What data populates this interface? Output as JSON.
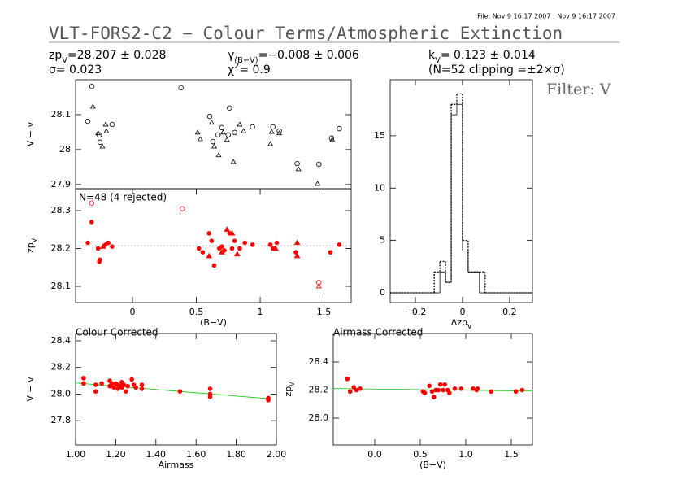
{
  "header": {
    "file": "File: Nov  9 16:17 2007 : Nov  9 16:17 2007",
    "title": "VLT-FORS2-C2 − Colour Terms/Atmospheric Extinction",
    "filter": "Filter: V",
    "stats": [
      [
        {
          "text": "zp"
        },
        {
          "text": "V",
          "pos": "sub"
        },
        {
          "text": "=28.207 ± 0.028"
        }
      ],
      [
        {
          "text": "γ"
        },
        {
          "text": "(B−V)",
          "pos": "sub"
        },
        {
          "text": "=−0.008 ± 0.006"
        }
      ],
      [
        {
          "text": "k"
        },
        {
          "text": "V",
          "pos": "sub"
        },
        {
          "text": "= 0.123 ± 0.014"
        }
      ],
      [
        {
          "text": "σ= 0.023"
        }
      ],
      [
        {
          "text": "χ"
        },
        {
          "text": "2",
          "pos": "sup"
        },
        {
          "text": "=  0.9"
        }
      ],
      [
        {
          "text": "(N=52 clipping =±2×σ)"
        }
      ]
    ]
  },
  "chart_data": [
    {
      "type": "scatter",
      "ylabel": "V − v",
      "xlim": [
        -0.446,
        1.713
      ],
      "ylim": [
        27.888,
        28.2
      ],
      "yticks": [
        27.9,
        28.0,
        28.1
      ],
      "series": [
        {
          "marker": "circle",
          "color": "#000000",
          "x": [
            -0.318,
            -0.35,
            -0.26,
            -0.255,
            -0.16,
            0.38,
            0.605,
            0.63,
            0.67,
            0.7,
            0.75,
            0.76,
            0.8,
            0.94,
            1.1,
            1.15,
            1.29,
            1.46,
            1.56,
            1.62
          ],
          "values": [
            28.181,
            28.081,
            28.042,
            28.021,
            28.072,
            28.177,
            28.095,
            28.023,
            28.042,
            28.063,
            28.042,
            28.119,
            28.049,
            28.065,
            28.065,
            28.053,
            27.96,
            27.958,
            28.033,
            28.06
          ]
        },
        {
          "marker": "triangle",
          "color": "#000000",
          "x": [
            -0.31,
            -0.27,
            -0.236,
            -0.21,
            -0.205,
            0.51,
            0.53,
            0.62,
            0.64,
            0.675,
            0.71,
            0.74,
            0.79,
            0.84,
            0.87,
            1.09,
            1.08,
            1.15,
            1.3,
            1.45,
            1.565
          ],
          "values": [
            28.123,
            28.047,
            28.009,
            28.072,
            28.053,
            28.049,
            28.03,
            28.077,
            28.009,
            27.984,
            28.049,
            28.028,
            27.965,
            28.072,
            28.053,
            28.051,
            28.016,
            28.047,
            27.944,
            27.902,
            28.028
          ]
        }
      ]
    },
    {
      "type": "scatter",
      "ylabel": [
        {
          "text": "zp"
        },
        {
          "text": "V",
          "pos": "sub"
        }
      ],
      "xlabel": "(B−V)",
      "annotation": "N=48 (4 rejected)",
      "xlim": [
        -0.446,
        1.713
      ],
      "ylim": [
        28.057,
        28.358
      ],
      "xticks": [
        0,
        0.5,
        1,
        1.5
      ],
      "yticks": [
        28.1,
        28.2,
        28.3
      ],
      "ref_line": 28.207,
      "series": [
        {
          "marker": "filled-circle",
          "color": "#ff0000",
          "x": [
            -0.35,
            -0.32,
            -0.27,
            -0.26,
            -0.255,
            -0.21,
            -0.19,
            -0.16,
            0.52,
            0.55,
            0.6,
            0.62,
            0.64,
            0.68,
            0.7,
            0.72,
            0.76,
            0.78,
            0.8,
            0.84,
            0.88,
            0.94,
            1.08,
            1.1,
            1.13,
            1.28,
            1.55,
            1.62
          ],
          "values": [
            28.215,
            28.27,
            28.2,
            28.165,
            28.17,
            28.21,
            28.215,
            28.205,
            28.2,
            28.19,
            28.24,
            28.22,
            28.155,
            28.2,
            28.205,
            28.195,
            28.24,
            28.2,
            28.22,
            28.2,
            28.215,
            28.21,
            28.21,
            28.2,
            28.215,
            28.19,
            28.19,
            28.21
          ]
        },
        {
          "marker": "filled-triangle",
          "color": "#ff0000",
          "x": [
            -0.23,
            0.6,
            0.7,
            0.74,
            0.78,
            0.82,
            1.12,
            1.29,
            1.29
          ],
          "values": [
            28.205,
            28.18,
            28.19,
            28.25,
            28.24,
            28.185,
            28.2,
            28.18,
            28.215
          ]
        },
        {
          "marker": "circle",
          "color": "#ff0000",
          "x": [
            -0.32,
            0.39,
            1.46
          ],
          "values": [
            28.32,
            28.305,
            28.11
          ]
        },
        {
          "marker": "triangle",
          "color": "#ff0000",
          "x": [
            1.46
          ],
          "values": [
            28.1
          ]
        }
      ]
    },
    {
      "type": "histogram",
      "xlabel": [
        {
          "text": "Δzp"
        },
        {
          "text": "V",
          "pos": "sub"
        }
      ],
      "xlim": [
        -0.307,
        0.297
      ],
      "ylim": [
        -0.93,
        20.35
      ],
      "xticks": [
        {
          "value": -0.2,
          "label": "−0.2"
        },
        0,
        0.2
      ],
      "yticks": [
        0,
        5,
        10,
        15
      ],
      "bins": [
        -0.12,
        -0.096,
        -0.072,
        -0.048,
        -0.024,
        0,
        0.024,
        0.048,
        0.072,
        0.096
      ],
      "series": [
        {
          "style": "dotted",
          "color": "#000000",
          "values": [
            2,
            3,
            1,
            18,
            19,
            5,
            2,
            2,
            2
          ]
        },
        {
          "style": "solid",
          "color": "#000000",
          "values": [
            0,
            2,
            1,
            17,
            18,
            4,
            2,
            2,
            0
          ]
        }
      ]
    },
    {
      "type": "scatter",
      "title": "Colour Corrected",
      "ylabel": "V − v",
      "xlabel": "Airmass",
      "xlim": [
        1.0,
        2.0
      ],
      "ylim": [
        27.618,
        28.455
      ],
      "xticks": [
        {
          "value": 1.0,
          "label": "1.00"
        },
        {
          "value": 1.2,
          "label": "1.20"
        },
        {
          "value": 1.4,
          "label": "1.40"
        },
        {
          "value": 1.6,
          "label": "1.60"
        },
        {
          "value": 1.8,
          "label": "1.80"
        },
        {
          "value": 2.0,
          "label": "2.00"
        }
      ],
      "yticks": [
        27.8,
        {
          "value": 28.0,
          "label": "28.0"
        },
        28.2,
        28.4
      ],
      "fit": {
        "color": "#00cc00",
        "x": [
          1.0,
          1.96
        ],
        "values": [
          28.084,
          27.966
        ]
      },
      "series": [
        {
          "marker": "filled-circle",
          "color": "#ff0000",
          "x": [
            1.04,
            1.04,
            1.1,
            1.1,
            1.13,
            1.17,
            1.17,
            1.18,
            1.19,
            1.2,
            1.21,
            1.21,
            1.22,
            1.23,
            1.23,
            1.24,
            1.25,
            1.26,
            1.28,
            1.29,
            1.3,
            1.33,
            1.33,
            1.52,
            1.67,
            1.67,
            1.67,
            1.96,
            1.96
          ],
          "values": [
            28.12,
            28.08,
            28.02,
            28.07,
            28.08,
            28.1,
            28.06,
            28.08,
            28.05,
            28.08,
            28.07,
            28.04,
            28.06,
            28.09,
            28.05,
            28.07,
            28.02,
            28.06,
            28.11,
            28.07,
            28.05,
            28.07,
            28.04,
            28.02,
            28.04,
            28.0,
            27.98,
            27.97,
            27.955
          ]
        }
      ]
    },
    {
      "type": "scatter",
      "title": "Airmass Corrected",
      "ylabel": [
        {
          "text": "zp"
        },
        {
          "text": "V",
          "pos": "sub"
        }
      ],
      "xlabel": "(B−V)",
      "xlim": [
        -0.455,
        1.732
      ],
      "ylim": [
        27.809,
        28.603
      ],
      "xticks": [
        {
          "value": 0,
          "label": "0.0"
        },
        0.5,
        {
          "value": 1,
          "label": "1.0"
        },
        1.5
      ],
      "yticks": [
        {
          "value": 28.0,
          "label": "28.0"
        },
        28.2,
        28.4
      ],
      "fit": {
        "color": "#00cc00",
        "x": [
          -0.455,
          1.732
        ],
        "values": [
          28.211,
          28.193
        ]
      },
      "series": [
        {
          "marker": "filled-circle",
          "color": "#ff0000",
          "x": [
            -0.3,
            -0.27,
            -0.23,
            -0.2,
            -0.16,
            0.53,
            0.55,
            0.6,
            0.63,
            0.65,
            0.67,
            0.7,
            0.72,
            0.75,
            0.77,
            0.8,
            0.82,
            0.88,
            0.95,
            1.08,
            1.12,
            1.13,
            1.28,
            1.55,
            1.62
          ],
          "values": [
            28.28,
            28.19,
            28.22,
            28.2,
            28.21,
            28.19,
            28.18,
            28.23,
            28.19,
            28.15,
            28.2,
            28.2,
            28.24,
            28.2,
            28.24,
            28.2,
            28.18,
            28.21,
            28.21,
            28.21,
            28.2,
            28.21,
            28.19,
            28.19,
            28.2
          ]
        }
      ]
    }
  ]
}
